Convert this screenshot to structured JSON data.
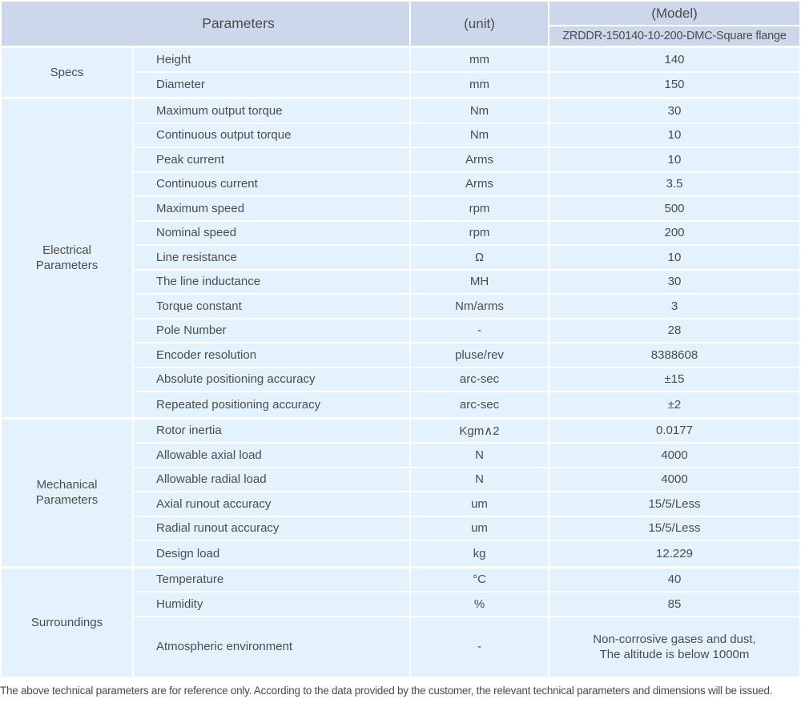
{
  "colors": {
    "header_bg": "#ccd7eb",
    "body_bg": "#e3f2fc",
    "separator": "#ffffff",
    "text": "#4c4c4c"
  },
  "table": {
    "header": {
      "parameters_label": "Parameters",
      "unit_label": "(unit)",
      "model_label": "(Model)",
      "model_value": "ZRDDR-150140-10-200-DMC-Square flange"
    },
    "groups": [
      {
        "category": "Specs",
        "rows": [
          {
            "param": "Height",
            "unit": "mm",
            "value": "140"
          },
          {
            "param": "Diameter",
            "unit": "mm",
            "value": "150"
          }
        ]
      },
      {
        "category": "Electrical Parameters",
        "rows": [
          {
            "param": "Maximum output torque",
            "unit": "Nm",
            "value": "30"
          },
          {
            "param": "Continuous output torque",
            "unit": "Nm",
            "value": "10"
          },
          {
            "param": "Peak current",
            "unit": "Arms",
            "value": "10"
          },
          {
            "param": "Continuous current",
            "unit": "Arms",
            "value": "3.5"
          },
          {
            "param": "Maximum speed",
            "unit": "rpm",
            "value": "500"
          },
          {
            "param": "Nominal speed",
            "unit": "rpm",
            "value": "200"
          },
          {
            "param": "Line resistance",
            "unit": "Ω",
            "value": "10"
          },
          {
            "param": "The line inductance",
            "unit": "MH",
            "value": "30"
          },
          {
            "param": "Torque constant",
            "unit": "Nm/arms",
            "value": "3"
          },
          {
            "param": "Pole Number",
            "unit": "-",
            "value": "28"
          },
          {
            "param": "Encoder resolution",
            "unit": "pluse/rev",
            "value": "8388608"
          },
          {
            "param": "Absolute positioning accuracy",
            "unit": "arc-sec",
            "value": "±15"
          },
          {
            "param": "Repeated positioning accuracy",
            "unit": "arc-sec",
            "value": "±2"
          }
        ]
      },
      {
        "category": "Mechanical Parameters",
        "rows": [
          {
            "param": "Rotor inertia",
            "unit": "Kgm∧2",
            "value": "0.0177"
          },
          {
            "param": "Allowable axial load",
            "unit": "N",
            "value": "4000"
          },
          {
            "param": "Allowable radial load",
            "unit": "N",
            "value": "4000"
          },
          {
            "param": "Axial runout accuracy",
            "unit": "um",
            "value": "15/5/Less"
          },
          {
            "param": "Radial runout accuracy",
            "unit": "um",
            "value": "15/5/Less"
          },
          {
            "param": "Design load",
            "unit": "kg",
            "value": "12.229"
          }
        ]
      },
      {
        "category": "Surroundings",
        "rows": [
          {
            "param": "Temperature",
            "unit": "°C",
            "value": "40"
          },
          {
            "param": "Humidity",
            "unit": "%",
            "value": "85"
          },
          {
            "param": "Atmospheric environment",
            "unit": "-",
            "value": "Non-corrosive gases and dust,\nThe altitude is below 1000m"
          }
        ]
      }
    ],
    "footnote": "The above technical parameters are for reference only. According to the data provided by the customer, the relevant technical parameters and dimensions will be issued."
  }
}
